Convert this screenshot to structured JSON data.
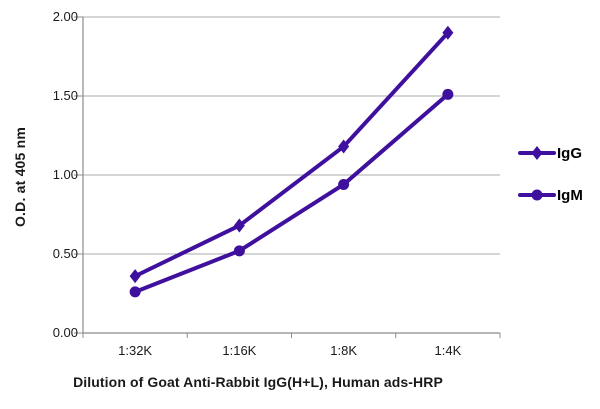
{
  "chart_data": {
    "type": "line",
    "title": "",
    "xlabel": "Dilution of Goat Anti-Rabbit IgG(H+L), Human ads-HRP",
    "ylabel": "O.D. at 405 nm",
    "categories": [
      "1:32K",
      "1:16K",
      "1:8K",
      "1:4K"
    ],
    "series": [
      {
        "name": "IgG",
        "marker": "diamond",
        "color": "#3E109D",
        "values": [
          0.36,
          0.68,
          1.18,
          1.9
        ]
      },
      {
        "name": "IgM",
        "marker": "circle",
        "color": "#3E109D",
        "values": [
          0.26,
          0.52,
          0.94,
          1.51
        ]
      }
    ],
    "ylim": [
      0,
      2
    ],
    "yticks": [
      "0.00",
      "0.50",
      "1.00",
      "1.50",
      "2.00"
    ],
    "grid": true,
    "legend_position": "right",
    "colors": {
      "line": "#3E109D",
      "grid": "#ababab",
      "axis": "#8c8c8c",
      "text": "#1a1a1a"
    }
  }
}
